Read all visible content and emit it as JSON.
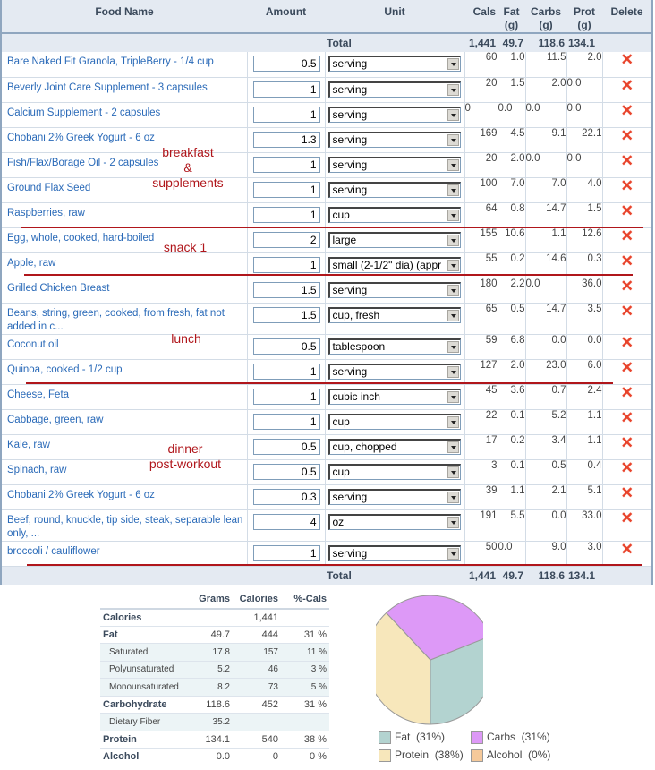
{
  "table": {
    "headers": {
      "food_name": "Food Name",
      "amount": "Amount",
      "unit": "Unit",
      "cals": "Cals",
      "fat": "Fat (g)",
      "carbs": "Carbs (g)",
      "prot": "Prot (g)",
      "delete": "Delete"
    },
    "total": {
      "label": "Total",
      "cals": "1,441",
      "fat": "49.7",
      "carbs": "118.6",
      "prot": "134.1"
    },
    "delete_icon": "✕",
    "rows": [
      {
        "name": "Bare Naked Fit Granola, TripleBerry - 1/4 cup",
        "amount": "0.5",
        "unit": "serving",
        "cals": "60",
        "fat": "1.0",
        "carbs": "11.5",
        "prot": "2.0"
      },
      {
        "name": "Beverly Joint Care Supplement - 3 capsules",
        "amount": "1",
        "unit": "serving",
        "cals": "20",
        "fat": "1.5",
        "carbs": "2.0",
        "prot": "0.0"
      },
      {
        "name": "Calcium Supplement - 2 capsules",
        "amount": "1",
        "unit": "serving",
        "cals": "0",
        "fat": "0.0",
        "carbs": "0.0",
        "prot": "0.0"
      },
      {
        "name": "Chobani 2% Greek Yogurt - 6 oz",
        "amount": "1.3",
        "unit": "serving",
        "cals": "169",
        "fat": "4.5",
        "carbs": "9.1",
        "prot": "22.1"
      },
      {
        "name": "Fish/Flax/Borage Oil - 2 capsules",
        "amount": "1",
        "unit": "serving",
        "cals": "20",
        "fat": "2.0",
        "carbs": "0.0",
        "prot": "0.0"
      },
      {
        "name": "Ground Flax Seed",
        "amount": "1",
        "unit": "serving",
        "cals": "100",
        "fat": "7.0",
        "carbs": "7.0",
        "prot": "4.0"
      },
      {
        "name": "Raspberries, raw",
        "amount": "1",
        "unit": "cup",
        "cals": "64",
        "fat": "0.8",
        "carbs": "14.7",
        "prot": "1.5"
      },
      {
        "name": "Egg, whole, cooked, hard-boiled",
        "amount": "2",
        "unit": "large",
        "cals": "155",
        "fat": "10.6",
        "carbs": "1.1",
        "prot": "12.6"
      },
      {
        "name": "Apple, raw",
        "amount": "1",
        "unit": "small (2-1/2\" dia) (appr",
        "cals": "55",
        "fat": "0.2",
        "carbs": "14.6",
        "prot": "0.3"
      },
      {
        "name": "Grilled Chicken Breast",
        "amount": "1.5",
        "unit": "serving",
        "cals": "180",
        "fat": "2.2",
        "carbs": "0.0",
        "prot": "36.0"
      },
      {
        "name": "Beans, string, green, cooked, from fresh, fat not added in c...",
        "amount": "1.5",
        "unit": "cup, fresh",
        "cals": "65",
        "fat": "0.5",
        "carbs": "14.7",
        "prot": "3.5"
      },
      {
        "name": "Coconut oil",
        "amount": "0.5",
        "unit": "tablespoon",
        "cals": "59",
        "fat": "6.8",
        "carbs": "0.0",
        "prot": "0.0"
      },
      {
        "name": "Quinoa, cooked - 1/2 cup",
        "amount": "1",
        "unit": "serving",
        "cals": "127",
        "fat": "2.0",
        "carbs": "23.0",
        "prot": "6.0"
      },
      {
        "name": "Cheese, Feta",
        "amount": "1",
        "unit": "cubic inch",
        "cals": "45",
        "fat": "3.6",
        "carbs": "0.7",
        "prot": "2.4"
      },
      {
        "name": "Cabbage, green, raw",
        "amount": "1",
        "unit": "cup",
        "cals": "22",
        "fat": "0.1",
        "carbs": "5.2",
        "prot": "1.1"
      },
      {
        "name": "Kale, raw",
        "amount": "0.5",
        "unit": "cup, chopped",
        "cals": "17",
        "fat": "0.2",
        "carbs": "3.4",
        "prot": "1.1"
      },
      {
        "name": "Spinach, raw",
        "amount": "0.5",
        "unit": "cup",
        "cals": "3",
        "fat": "0.1",
        "carbs": "0.5",
        "prot": "0.4"
      },
      {
        "name": "Chobani 2% Greek Yogurt - 6 oz",
        "amount": "0.3",
        "unit": "serving",
        "cals": "39",
        "fat": "1.1",
        "carbs": "2.1",
        "prot": "5.1"
      },
      {
        "name": "Beef, round, knuckle, tip side, steak, separable lean only, ...",
        "amount": "4",
        "unit": "oz",
        "cals": "191",
        "fat": "5.5",
        "carbs": "0.0",
        "prot": "33.0"
      },
      {
        "name": "broccoli / cauliflower",
        "amount": "1",
        "unit": "serving",
        "cals": "50",
        "fat": "0.0",
        "carbs": "9.0",
        "prot": "3.0"
      }
    ]
  },
  "annotations": {
    "breakfast_1": "breakfast",
    "breakfast_2": "&",
    "breakfast_3": "supplements",
    "snack": "snack 1",
    "lunch": "lunch",
    "dinner_1": "dinner",
    "dinner_2": "post-workout"
  },
  "summary": {
    "headers": [
      "Grams",
      "Calories",
      "%-Cals"
    ],
    "rows": [
      {
        "label": "Calories",
        "grams": "",
        "calories": "1,441",
        "pct": "",
        "sub": false
      },
      {
        "label": "Fat",
        "grams": "49.7",
        "calories": "444",
        "pct": "31 %",
        "sub": false
      },
      {
        "label": "Saturated",
        "grams": "17.8",
        "calories": "157",
        "pct": "11 %",
        "sub": true
      },
      {
        "label": "Polyunsaturated",
        "grams": "5.2",
        "calories": "46",
        "pct": "3 %",
        "sub": true
      },
      {
        "label": "Monounsaturated",
        "grams": "8.2",
        "calories": "73",
        "pct": "5 %",
        "sub": true
      },
      {
        "label": "Carbohydrate",
        "grams": "118.6",
        "calories": "452",
        "pct": "31 %",
        "sub": false
      },
      {
        "label": "Dietary Fiber",
        "grams": "35.2",
        "calories": "",
        "pct": "",
        "sub": true
      },
      {
        "label": "Protein",
        "grams": "134.1",
        "calories": "540",
        "pct": "38 %",
        "sub": false
      },
      {
        "label": "Alcohol",
        "grams": "0.0",
        "calories": "0",
        "pct": "0 %",
        "sub": false
      }
    ]
  },
  "chart_data": {
    "type": "pie",
    "title": "",
    "categories": [
      "Fat",
      "Carbs",
      "Protein",
      "Alcohol"
    ],
    "values": [
      31,
      31,
      38,
      0
    ],
    "legend_labels": [
      "Fat  (31%)",
      "Carbs  (31%)",
      "Protein  (38%)",
      "Alcohol  (0%)"
    ],
    "colors": [
      "#b3d3d0",
      "#dd99f7",
      "#f7e7bb",
      "#f5c99a"
    ],
    "legend_position": "bottom"
  }
}
